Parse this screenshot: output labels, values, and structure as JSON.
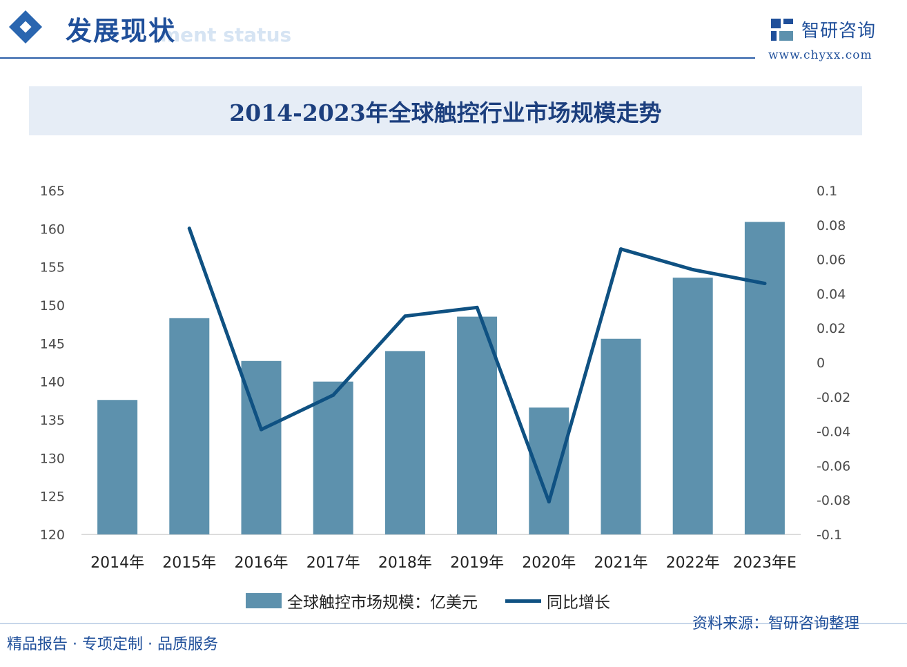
{
  "header": {
    "title": "发展现状",
    "subtitle_faint": "ment status"
  },
  "brand": {
    "name": "智研咨询",
    "url": "www.chyxx.com"
  },
  "chart_data": {
    "type": "bar",
    "title": "2014-2023年全球触控行业市场规模走势",
    "categories": [
      "2014年",
      "2015年",
      "2016年",
      "2017年",
      "2018年",
      "2019年",
      "2020年",
      "2021年",
      "2022年",
      "2023年E"
    ],
    "series": [
      {
        "name": "全球触控市场规模：亿美元",
        "type": "bar",
        "axis": "left",
        "values": [
          137.6,
          148.3,
          142.7,
          140.0,
          144.0,
          148.5,
          136.6,
          145.6,
          153.6,
          160.9
        ]
      },
      {
        "name": "同比增长",
        "type": "line",
        "axis": "right",
        "values": [
          null,
          0.078,
          -0.039,
          -0.019,
          0.027,
          0.032,
          -0.081,
          0.066,
          0.054,
          0.046
        ]
      }
    ],
    "left_axis": {
      "min": 120,
      "max": 165,
      "ticks": [
        120,
        125,
        130,
        135,
        140,
        145,
        150,
        155,
        160,
        165
      ]
    },
    "right_axis": {
      "min": -0.1,
      "max": 0.1,
      "ticks": [
        "-0.1",
        "-0.08",
        "-0.06",
        "-0.04",
        "-0.02",
        "0",
        "0.02",
        "0.04",
        "0.06",
        "0.08",
        "0.1"
      ]
    },
    "legend_position": "bottom",
    "grid": false,
    "colors": {
      "bar": "#5d91ad",
      "line": "#0f5182"
    }
  },
  "source": "资料来源：智研咨询整理",
  "footer": "精品报告 · 专项定制 · 品质服务"
}
